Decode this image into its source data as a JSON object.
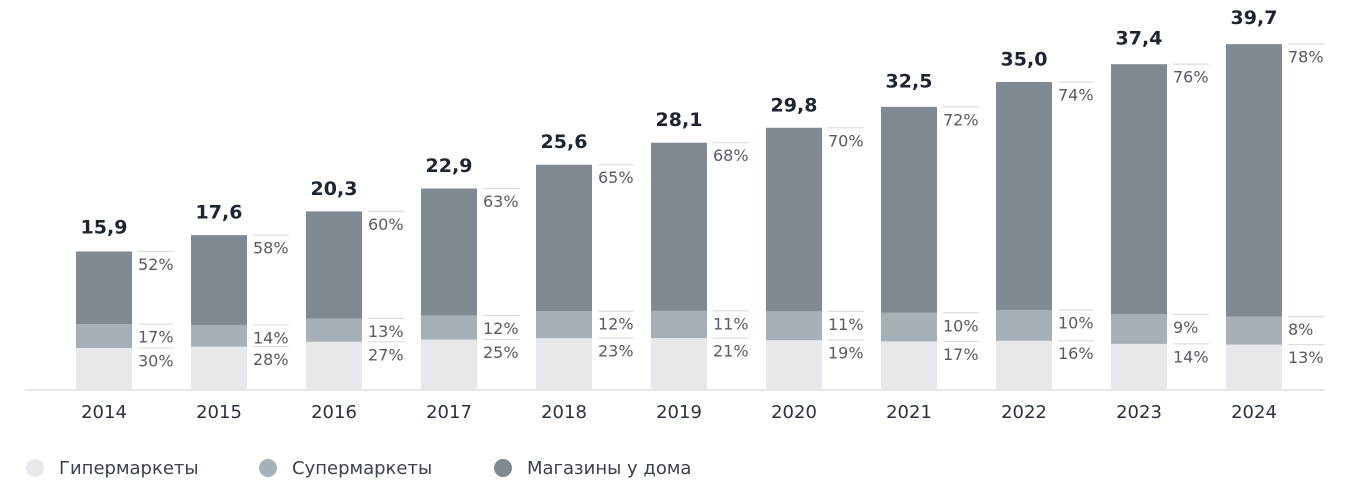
{
  "chart_data": {
    "type": "bar",
    "categories": [
      "2014",
      "2015",
      "2016",
      "2017",
      "2018",
      "2019",
      "2020",
      "2021",
      "2022",
      "2023",
      "2024"
    ],
    "totals": [
      15.9,
      17.6,
      20.3,
      22.9,
      25.6,
      28.1,
      29.8,
      32.5,
      35.0,
      37.4,
      39.7
    ],
    "totals_labels": [
      "15,9",
      "17,6",
      "20,3",
      "22,9",
      "25,6",
      "28,1",
      "29,8",
      "32,5",
      "35,0",
      "37,4",
      "39,7"
    ],
    "ylim": [
      0,
      40
    ],
    "series": [
      {
        "name": "Гипермаркеты",
        "color": "#e6e8eb",
        "values": [
          30,
          28,
          27,
          25,
          23,
          21,
          19,
          17,
          16,
          14,
          13
        ],
        "value_labels": [
          "30%",
          "28%",
          "27%",
          "25%",
          "23%",
          "21%",
          "19%",
          "17%",
          "16%",
          "14%",
          "13%"
        ]
      },
      {
        "name": "Супермаркеты",
        "color": "#a7b0b7",
        "values": [
          17,
          14,
          13,
          12,
          12,
          11,
          11,
          10,
          10,
          9,
          8
        ],
        "value_labels": [
          "17%",
          "14%",
          "13%",
          "12%",
          "12%",
          "11%",
          "11%",
          "10%",
          "10%",
          "9%",
          "8%"
        ]
      },
      {
        "name": "Магазины у дома",
        "color": "#818992",
        "values": [
          52,
          58,
          60,
          63,
          65,
          68,
          70,
          72,
          74,
          76,
          78
        ],
        "value_labels": [
          "52%",
          "58%",
          "60%",
          "63%",
          "65%",
          "68%",
          "70%",
          "72%",
          "74%",
          "76%",
          "78%"
        ]
      }
    ]
  }
}
